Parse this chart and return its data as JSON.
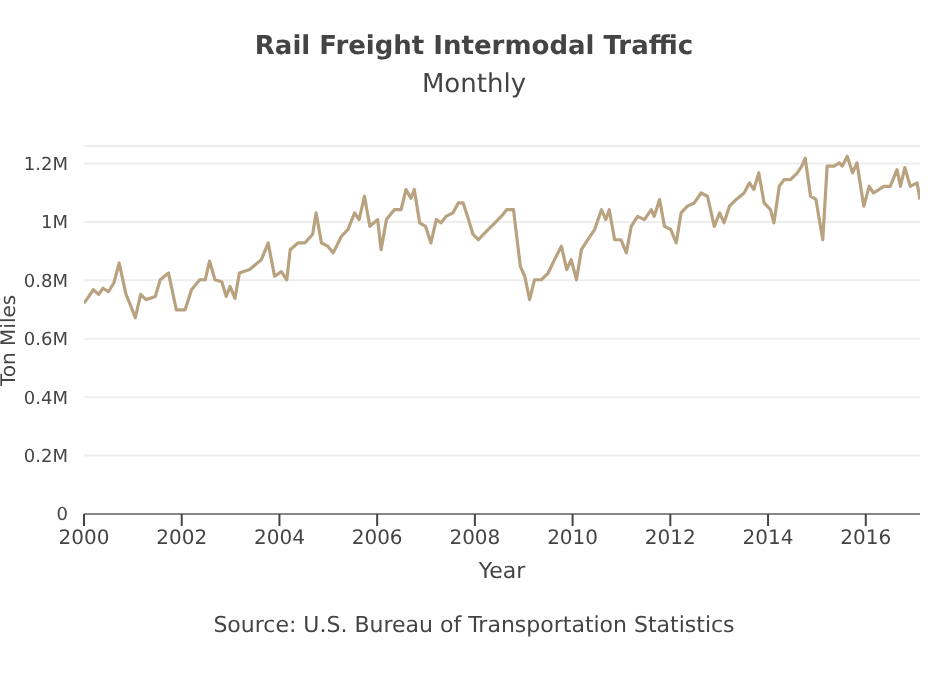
{
  "chart_data": {
    "type": "line",
    "title": "Rail Freight Intermodal Traffic",
    "subtitle": "Monthly",
    "xlabel": "Year",
    "ylabel": "Ton Miles",
    "annotations": [
      "Source: U.S. Bureau of Transportation Statistics"
    ],
    "x": [
      2000.0,
      2000.1,
      2000.19,
      2000.3,
      2000.39,
      2000.5,
      2000.61,
      2000.72,
      2000.86,
      2000.95,
      2001.05,
      2001.16,
      2001.27,
      2001.46,
      2001.56,
      2001.73,
      2001.89,
      2002.07,
      2002.2,
      2002.37,
      2002.48,
      2002.57,
      2002.68,
      2002.82,
      2002.91,
      2002.99,
      2003.09,
      2003.18,
      2003.39,
      2003.63,
      2003.77,
      2003.9,
      2004.04,
      2004.15,
      2004.22,
      2004.38,
      2004.52,
      2004.68,
      2004.75,
      2004.86,
      2004.99,
      2005.1,
      2005.27,
      2005.4,
      2005.54,
      2005.63,
      2005.74,
      2005.85,
      2006.01,
      2006.08,
      2006.19,
      2006.35,
      2006.49,
      2006.59,
      2006.69,
      2006.76,
      2006.87,
      2006.99,
      2007.1,
      2007.21,
      2007.31,
      2007.41,
      2007.55,
      2007.66,
      2007.76,
      2007.85,
      2007.96,
      2008.07,
      2008.27,
      2008.41,
      2008.54,
      2008.65,
      2008.79,
      2008.93,
      2009.02,
      2009.12,
      2009.22,
      2009.36,
      2009.5,
      2009.63,
      2009.77,
      2009.88,
      2009.97,
      2010.08,
      2010.18,
      2010.31,
      2010.45,
      2010.59,
      2010.68,
      2010.75,
      2010.86,
      2010.99,
      2011.1,
      2011.2,
      2011.33,
      2011.47,
      2011.61,
      2011.67,
      2011.78,
      2011.88,
      2012.01,
      2012.12,
      2012.22,
      2012.35,
      2012.49,
      2012.63,
      2012.76,
      2012.9,
      2013.01,
      2013.1,
      2013.21,
      2013.35,
      2013.51,
      2013.62,
      2013.71,
      2013.81,
      2013.92,
      2014.05,
      2014.12,
      2014.23,
      2014.33,
      2014.46,
      2014.6,
      2014.69,
      2014.76,
      2014.87,
      2014.98,
      2015.12,
      2015.21,
      2015.35,
      2015.46,
      2015.52,
      2015.62,
      2015.73,
      2015.82,
      2015.96,
      2016.07,
      2016.16,
      2016.37,
      2016.5,
      2016.64,
      2016.71,
      2016.8,
      2016.91,
      2017.05,
      2017.11
    ],
    "series": [
      {
        "color": "#b9a27f",
        "values": [
          722000,
          745000,
          768000,
          752000,
          773000,
          761000,
          791000,
          859000,
          752000,
          715000,
          672000,
          752000,
          734000,
          745000,
          802000,
          825000,
          699000,
          699000,
          768000,
          802000,
          802000,
          866000,
          802000,
          795000,
          745000,
          779000,
          738000,
          825000,
          837000,
          871000,
          928000,
          814000,
          830000,
          802000,
          905000,
          928000,
          928000,
          958000,
          1031000,
          928000,
          917000,
          894000,
          951000,
          974000,
          1031000,
          1008000,
          1088000,
          985000,
          1008000,
          905000,
          1008000,
          1042000,
          1042000,
          1111000,
          1081000,
          1111000,
          997000,
          985000,
          928000,
          1008000,
          997000,
          1019000,
          1031000,
          1065000,
          1065000,
          1019000,
          958000,
          939000,
          974000,
          997000,
          1019000,
          1042000,
          1042000,
          848000,
          814000,
          734000,
          802000,
          802000,
          825000,
          871000,
          917000,
          837000,
          871000,
          802000,
          905000,
          939000,
          974000,
          1042000,
          1008000,
          1042000,
          939000,
          939000,
          894000,
          985000,
          1019000,
          1008000,
          1042000,
          1019000,
          1077000,
          985000,
          974000,
          928000,
          1031000,
          1054000,
          1065000,
          1099000,
          1088000,
          985000,
          1031000,
          997000,
          1054000,
          1077000,
          1099000,
          1134000,
          1111000,
          1168000,
          1065000,
          1042000,
          997000,
          1122000,
          1145000,
          1145000,
          1168000,
          1191000,
          1218000,
          1088000,
          1077000,
          939000,
          1191000,
          1191000,
          1202000,
          1191000,
          1225000,
          1168000,
          1202000,
          1054000,
          1122000,
          1099000,
          1122000,
          1122000,
          1179000,
          1122000,
          1186000,
          1122000,
          1134000,
          1077000
        ]
      }
    ],
    "xlim": [
      2000,
      2017.11
    ],
    "xticks": [
      2000,
      2002,
      2004,
      2006,
      2008,
      2010,
      2012,
      2014,
      2016
    ],
    "ylim": [
      0,
      1260000
    ],
    "yticks": [
      0,
      {
        "value": 200000,
        "label": "0.2M"
      },
      {
        "value": 400000,
        "label": "0.4M"
      },
      {
        "value": 600000,
        "label": "0.6M"
      },
      {
        "value": 800000,
        "label": "0.8M"
      },
      {
        "value": 1000000,
        "label": "1M"
      },
      {
        "value": 1200000,
        "label": "1.2M"
      }
    ],
    "grid": "y",
    "line_style": "solid"
  }
}
